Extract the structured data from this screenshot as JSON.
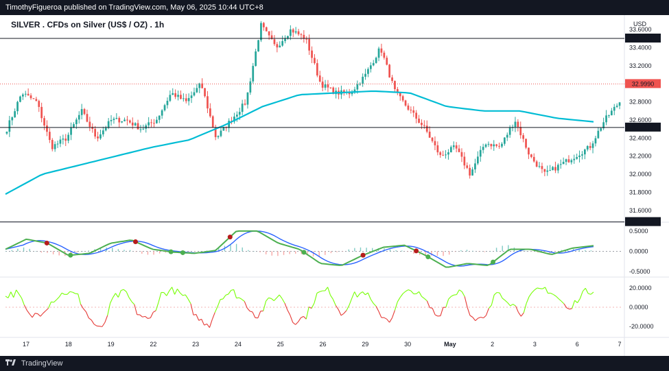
{
  "header": {
    "publisher": "TimothyFigueroa published on TradingView.com, May 06, 2025 10:44 UTC+8"
  },
  "footer": {
    "brand": "TradingView"
  },
  "colors": {
    "up": "#26a69a",
    "down": "#ef5350",
    "ma": "#00bcd4",
    "osc_fast": "#2962ff",
    "osc_up": "#4caf50",
    "osc_down": "#b71c1c",
    "rsi_up": "#76ff03",
    "rsi_down": "#e53935",
    "last_price": "#ef5350"
  },
  "chart_data": [
    {
      "type": "candlestick",
      "title": "SILVER . CFDs on Silver (US$ / OZ) . 1h",
      "currency": "USD",
      "ylim": [
        31.5,
        33.7
      ],
      "y_ticks": [
        "33.6000",
        "33.4000",
        "33.2000",
        "32.8000",
        "32.6000",
        "32.4000",
        "32.2000",
        "32.0000",
        "31.8000",
        "31.6000"
      ],
      "x_ticks": [
        "17",
        "18",
        "19",
        "22",
        "23",
        "24",
        "25",
        "26",
        "29",
        "30",
        "May",
        "2",
        "3",
        "6",
        "7"
      ],
      "horizontal_levels": [
        {
          "label": "33.5028",
          "value": 33.5028
        },
        {
          "label": "32.5177",
          "value": 32.5177
        },
        {
          "label": "31.4724",
          "value": 31.4724
        }
      ],
      "last_price": {
        "label": "32.9990",
        "value": 32.999
      },
      "close_anchors": [
        32.5,
        32.9,
        32.8,
        32.3,
        32.4,
        32.7,
        32.4,
        32.6,
        32.6,
        32.5,
        32.6,
        32.9,
        32.8,
        33.0,
        32.4,
        32.6,
        32.8,
        33.65,
        33.4,
        33.6,
        33.5,
        33.0,
        32.9,
        32.9,
        33.1,
        33.4,
        32.9,
        32.7,
        32.5,
        32.2,
        32.3,
        32.0,
        32.35,
        32.3,
        32.6,
        32.2,
        32.0,
        32.1,
        32.2,
        32.3,
        32.6,
        32.8
      ],
      "ma_anchors": [
        31.78,
        32.0,
        32.1,
        32.2,
        32.3,
        32.38,
        32.55,
        32.75,
        32.88,
        32.9,
        32.92,
        32.9,
        32.75,
        32.7,
        32.7,
        32.62,
        32.58
      ]
    },
    {
      "type": "line",
      "name": "oscillator",
      "y_ticks": [
        "0.5000",
        "0.0000",
        "-0.5000"
      ],
      "ylim": [
        -0.6,
        0.65
      ],
      "anchors": [
        0.05,
        0.3,
        0.2,
        -0.1,
        -0.05,
        0.2,
        0.28,
        0.05,
        -0.02,
        -0.05,
        0.02,
        0.5,
        0.5,
        0.2,
        0.05,
        -0.3,
        -0.35,
        -0.1,
        0.1,
        0.15,
        -0.1,
        -0.4,
        -0.3,
        -0.35,
        0.05,
        0.05,
        -0.08,
        0.08,
        0.14
      ],
      "markers_up": [
        0.11,
        0.28,
        0.3,
        0.51,
        0.61,
        0.72,
        0.83
      ],
      "markers_down": [
        0.07,
        0.22,
        0.38,
        0.61,
        0.7
      ]
    },
    {
      "type": "line",
      "name": "momentum",
      "y_ticks": [
        "20.0000",
        "0.0000",
        "-20.0000"
      ],
      "ylim": [
        -30,
        30
      ],
      "anchors": [
        12,
        15,
        -10,
        -5,
        8,
        16,
        12,
        -12,
        -25,
        10,
        16,
        -6,
        -15,
        14,
        18,
        10,
        -12,
        -18,
        12,
        16,
        4,
        -10,
        8,
        12,
        -15,
        -10,
        14,
        18,
        -8,
        12,
        16,
        -5,
        -14,
        12,
        18,
        6,
        -10,
        10,
        20,
        -15,
        -12,
        18,
        6,
        -6,
        15,
        20,
        10,
        -4,
        15,
        18
      ]
    }
  ]
}
